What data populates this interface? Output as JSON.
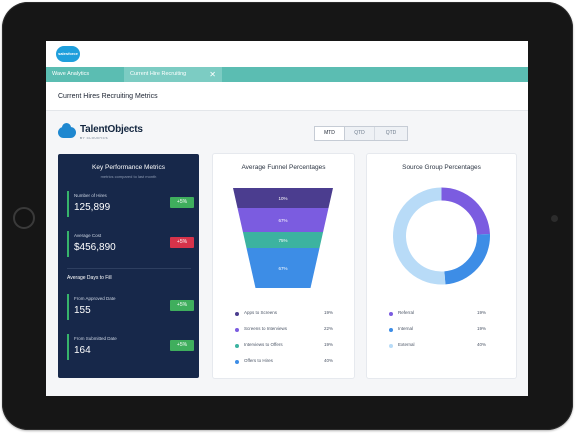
{
  "app": {
    "logo_text": "salesforce"
  },
  "tabs": [
    {
      "label": "Wave Analytics"
    },
    {
      "label": "Current Hire Recruiting",
      "close": "✕"
    }
  ],
  "page": {
    "title": "Current Hires Recruiting Metrics"
  },
  "brand": {
    "name": "TalentObjects",
    "tagline": "BY CLOUDYCS",
    "accent": "#1f88d0"
  },
  "period_toggle": [
    "MTD",
    "QTD",
    "QTD"
  ],
  "kpi": {
    "title": "Key Performance Metrics",
    "subtitle": "metrics compared to last month",
    "metrics": [
      {
        "label": "Number of Hires",
        "value": "125,899",
        "change": "+5%",
        "status": "up"
      },
      {
        "label": "Average Cost",
        "value": "$456,890",
        "change": "+5%",
        "status": "down"
      }
    ],
    "section_label": "Average Days to Fill",
    "days_metrics": [
      {
        "label": "From Approved Date",
        "value": "155",
        "change": "+5%",
        "status": "up"
      },
      {
        "label": "From Submitted Date",
        "value": "164",
        "change": "+5%",
        "status": "up"
      }
    ]
  },
  "funnel": {
    "title": "Average Funnel Percentages",
    "stages": [
      {
        "label": "Apps to Screens",
        "percent": 19,
        "bar_label": "10%",
        "color": "#4b3d8f"
      },
      {
        "label": "Screens to Interviews",
        "percent": 22,
        "bar_label": "67%",
        "color": "#7b5ce0"
      },
      {
        "label": "Interviews to Offers",
        "percent": 19,
        "bar_label": "75%",
        "color": "#3cb3a0"
      },
      {
        "label": "Offers to Hires",
        "percent": 40,
        "bar_label": "67%",
        "color": "#3d8de6"
      }
    ],
    "legend_values": [
      "19%",
      "22%",
      "19%",
      "40%"
    ]
  },
  "source": {
    "title": "Source Group Percentages",
    "groups": [
      {
        "label": "Referral",
        "percent": 19,
        "display": "19%",
        "color": "#7b5ce0"
      },
      {
        "label": "Internal",
        "percent": 19,
        "display": "19%",
        "color": "#3d8de6"
      },
      {
        "label": "External",
        "percent": 40,
        "display": "40%",
        "color": "#b8dbf7"
      }
    ]
  },
  "colors": {
    "tabbar": "#5bbdb2",
    "kpi_panel": "#17284a",
    "positive": "#3fae5d",
    "negative": "#d6334a"
  }
}
